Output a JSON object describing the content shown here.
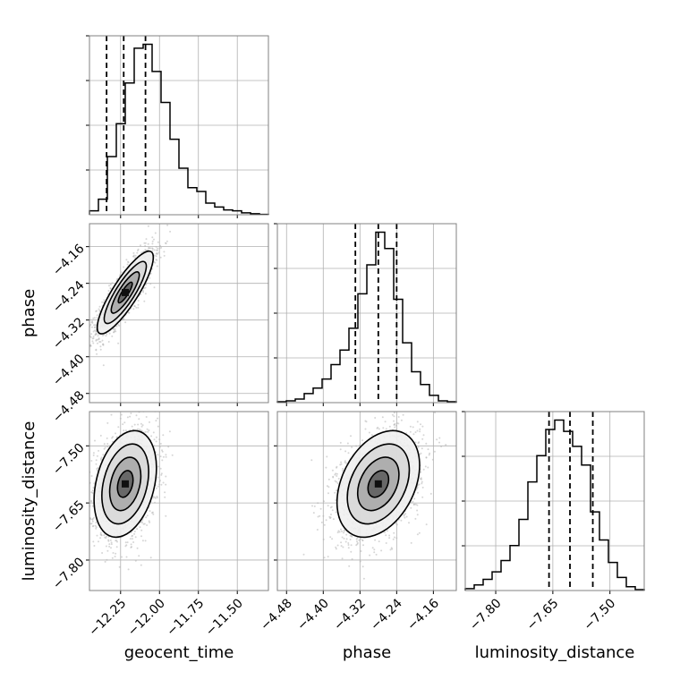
{
  "chart_data": {
    "type": "corner",
    "parameters": [
      {
        "name": "geocent_time",
        "label": "geocent_time",
        "range": [
          -12.45,
          -11.3
        ],
        "ticks": [
          -12.25,
          -12.0,
          -11.75,
          -11.5
        ],
        "tick_labels": [
          "−12.25",
          "−12.00",
          "−11.75",
          "−11.50"
        ],
        "quantiles": [
          -12.34,
          -12.23,
          -12.09
        ],
        "histogram": [
          0.02,
          0.08,
          0.3,
          0.47,
          0.68,
          0.86,
          0.88,
          0.74,
          0.58,
          0.39,
          0.24,
          0.14,
          0.12,
          0.06,
          0.04,
          0.025,
          0.02,
          0.01,
          0.005,
          0.002
        ]
      },
      {
        "name": "phase",
        "label": "phase",
        "range": [
          -4.5,
          -4.11
        ],
        "ticks": [
          -4.48,
          -4.4,
          -4.32,
          -4.24,
          -4.16
        ],
        "tick_labels": [
          "−4.48",
          "−4.40",
          "−4.32",
          "−4.24",
          "−4.16"
        ],
        "quantiles": [
          -4.33,
          -4.28,
          -4.24
        ],
        "histogram": [
          0.005,
          0.01,
          0.02,
          0.05,
          0.08,
          0.13,
          0.21,
          0.29,
          0.41,
          0.6,
          0.76,
          0.94,
          0.85,
          0.57,
          0.33,
          0.17,
          0.1,
          0.04,
          0.01,
          0.005
        ]
      },
      {
        "name": "luminosity_distance",
        "label": "luminosity_distance",
        "range": [
          -7.88,
          -7.41
        ],
        "ticks": [
          -7.8,
          -7.65,
          -7.5
        ],
        "tick_labels": [
          "−7.80",
          "−7.65",
          "−7.50"
        ],
        "quantiles": [
          -7.66,
          -7.605,
          -7.545
        ],
        "histogram": [
          0.01,
          0.03,
          0.06,
          0.1,
          0.16,
          0.24,
          0.38,
          0.58,
          0.72,
          0.86,
          0.91,
          0.85,
          0.77,
          0.67,
          0.42,
          0.27,
          0.15,
          0.07,
          0.02,
          0.005
        ]
      }
    ],
    "correlations": {
      "1_0": {
        "center": [
          -12.22,
          -4.26
        ],
        "spread": [
          0.09,
          0.045
        ],
        "rho": 0.85
      },
      "2_0": {
        "center": [
          -12.22,
          -7.6
        ],
        "spread": [
          0.1,
          0.07
        ],
        "rho": 0.3
      },
      "2_1": {
        "center": [
          -4.28,
          -7.6
        ],
        "spread": [
          0.045,
          0.07
        ],
        "rho": 0.35
      }
    },
    "contour_levels_sigma": [
      0.5,
      1.0,
      1.5,
      2.0
    ],
    "grid": true,
    "colors": {
      "line": "#000000",
      "grid": "#b0b0b0",
      "frame": "#808080",
      "points": "#b5b5b5"
    }
  }
}
